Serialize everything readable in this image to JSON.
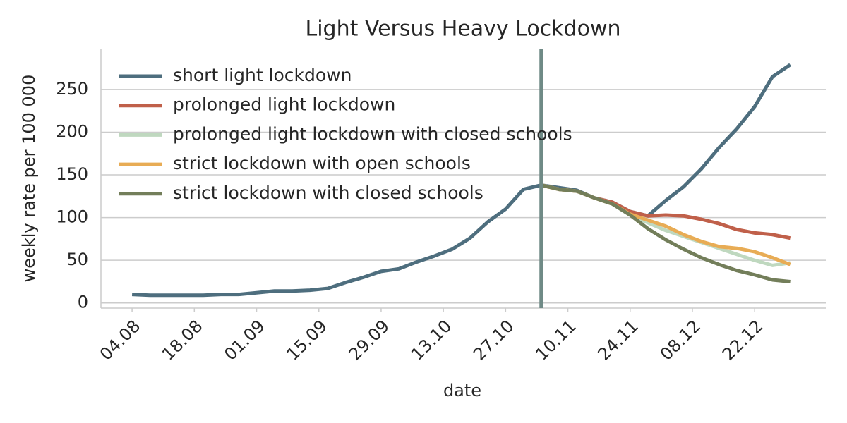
{
  "chart_data": {
    "type": "line",
    "title": "Light Versus Heavy Lockdown",
    "x_label": "date",
    "y_label": "weekly rate per 100 000",
    "x": [
      "04.08",
      "08.08",
      "12.08",
      "16.08",
      "20.08",
      "24.08",
      "28.08",
      "01.09",
      "05.09",
      "09.09",
      "13.09",
      "17.09",
      "21.09",
      "25.09",
      "29.09",
      "03.10",
      "07.10",
      "11.10",
      "15.10",
      "19.10",
      "23.10",
      "27.10",
      "31.10",
      "04.11",
      "08.11",
      "12.11",
      "16.11",
      "20.11",
      "24.11",
      "28.11",
      "02.12",
      "06.12",
      "10.12",
      "14.12",
      "18.12",
      "22.12",
      "26.12",
      "30.12"
    ],
    "series": [
      {
        "name": "short light lockdown",
        "color": "#4e6e7e",
        "values": [
          10,
          9,
          9,
          9,
          9,
          10,
          10,
          12,
          14,
          14,
          15,
          17,
          24,
          30,
          37,
          40,
          48,
          55,
          63,
          76,
          95,
          110,
          133,
          138,
          135,
          132,
          123,
          118,
          107,
          102,
          120,
          136,
          157,
          182,
          204,
          230,
          265,
          279
        ]
      },
      {
        "name": "prolonged light lockdown",
        "color": "#c0604a",
        "values": [
          null,
          null,
          null,
          null,
          null,
          null,
          null,
          null,
          null,
          null,
          null,
          null,
          null,
          null,
          null,
          null,
          null,
          null,
          null,
          null,
          null,
          null,
          null,
          138,
          133,
          131,
          123,
          118,
          107,
          102,
          103,
          102,
          98,
          93,
          86,
          82,
          80,
          76
        ]
      },
      {
        "name": "prolonged light lockdown with closed schools",
        "color": "#bfd8bf",
        "values": [
          null,
          null,
          null,
          null,
          null,
          null,
          null,
          null,
          null,
          null,
          null,
          null,
          null,
          null,
          null,
          null,
          null,
          null,
          null,
          null,
          null,
          null,
          null,
          138,
          133,
          131,
          123,
          116,
          103,
          94,
          85,
          78,
          71,
          64,
          57,
          50,
          44,
          47
        ]
      },
      {
        "name": "strict lockdown with open schools",
        "color": "#e8ac55",
        "values": [
          null,
          null,
          null,
          null,
          null,
          null,
          null,
          null,
          null,
          null,
          null,
          null,
          null,
          null,
          null,
          null,
          null,
          null,
          null,
          null,
          null,
          null,
          null,
          138,
          133,
          131,
          123,
          116,
          104,
          97,
          90,
          80,
          72,
          66,
          64,
          60,
          53,
          45
        ]
      },
      {
        "name": "strict lockdown with closed schools",
        "color": "#737e5a",
        "values": [
          null,
          null,
          null,
          null,
          null,
          null,
          null,
          null,
          null,
          null,
          null,
          null,
          null,
          null,
          null,
          null,
          null,
          null,
          null,
          null,
          null,
          null,
          null,
          138,
          133,
          131,
          123,
          116,
          103,
          87,
          74,
          63,
          53,
          45,
          38,
          33,
          27,
          25
        ]
      }
    ],
    "xlim": [
      "28.07",
      "07.01"
    ],
    "xticks": [
      "04.08",
      "18.08",
      "01.09",
      "15.09",
      "29.09",
      "13.10",
      "27.10",
      "10.11",
      "24.11",
      "08.12",
      "22.12"
    ],
    "ylim": [
      -6,
      297
    ],
    "yticks": [
      0,
      50,
      100,
      150,
      200,
      250
    ],
    "vlines": [
      "04.11"
    ],
    "vline_color": "#6f8a86",
    "grid": true,
    "legend": "upper left"
  }
}
